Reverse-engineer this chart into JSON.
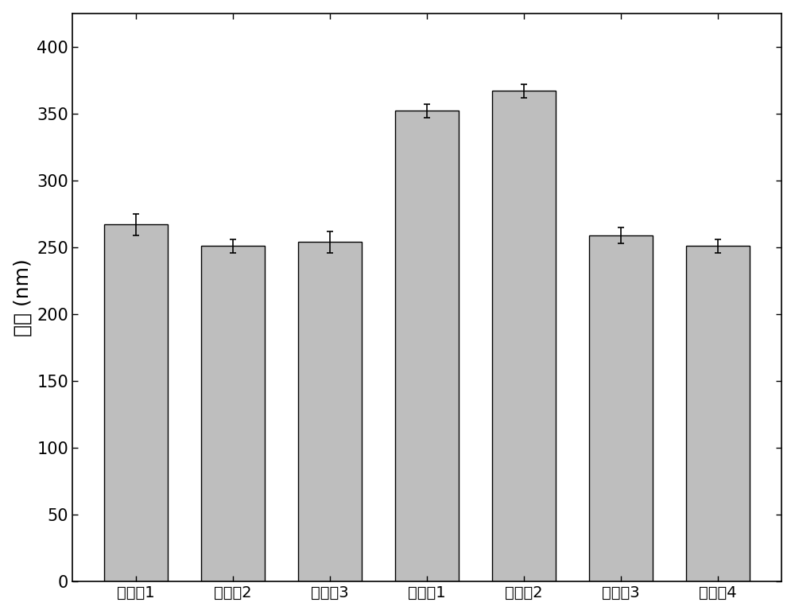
{
  "categories": [
    "实施例1",
    "实施例2",
    "实施例3",
    "对比例1",
    "对比例2",
    "对比例3",
    "对比例4"
  ],
  "values": [
    267,
    251,
    254,
    352,
    367,
    259,
    251
  ],
  "errors": [
    8,
    5,
    8,
    5,
    5,
    6,
    5
  ],
  "bar_color": "#BEBEBE",
  "bar_edgecolor": "#000000",
  "ylabel": "粒径 (nm)",
  "ylim": [
    0,
    425
  ],
  "yticks": [
    0,
    50,
    100,
    150,
    200,
    250,
    300,
    350,
    400
  ],
  "background_color": "#ffffff",
  "bar_width": 0.65,
  "capsize": 3,
  "ylabel_fontsize": 18,
  "tick_fontsize": 15,
  "xlabel_fontsize": 14
}
